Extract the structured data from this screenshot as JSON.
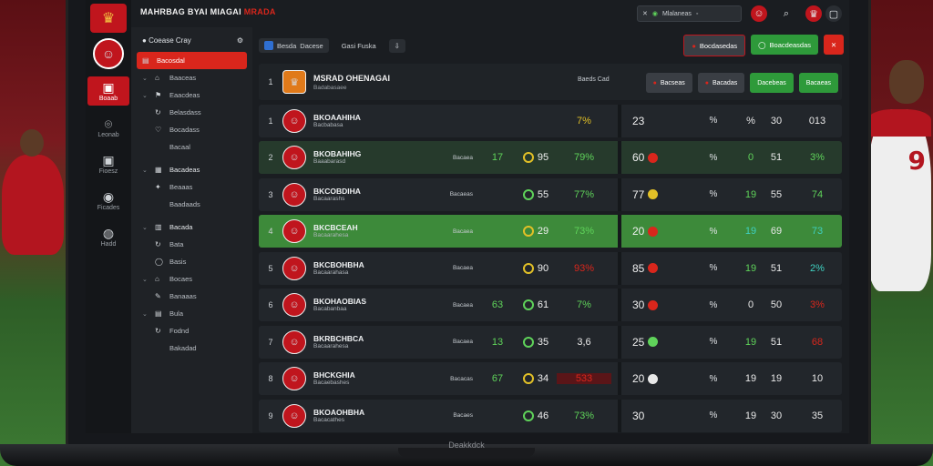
{
  "app": {
    "title_main": "MAHRBAG BYAI MIAGAI",
    "title_accent": "MRADA",
    "base_label": "Deakkdck"
  },
  "topbar": {
    "search_value": "Mlalaneas"
  },
  "rail": [
    {
      "label": "Leonab",
      "icon": "target-icon",
      "glyph": "⌾"
    },
    {
      "label": "Fioesz",
      "icon": "chart-icon",
      "glyph": "▣"
    },
    {
      "label": "Ficades",
      "icon": "camera-icon",
      "glyph": "◉"
    },
    {
      "label": "Hadd",
      "icon": "ball-icon",
      "glyph": "◍"
    }
  ],
  "sidebar": {
    "header": "Coease Cray",
    "items": [
      {
        "label": "Bacosdal",
        "type": "active",
        "icon": "▤"
      },
      {
        "label": "Baaceas",
        "type": "item",
        "icon": "⌂"
      },
      {
        "label": "Eaacdeas",
        "type": "item",
        "icon": "⚑"
      },
      {
        "label": "Belasdass",
        "type": "sub",
        "icon": "↻"
      },
      {
        "label": "Bocadass",
        "type": "sub",
        "icon": "♡"
      },
      {
        "label": "Bacaal",
        "type": "sub",
        "icon": ""
      },
      {
        "label": "Bacadeas",
        "type": "section",
        "icon": "▦"
      },
      {
        "label": "Beaaas",
        "type": "sub",
        "icon": "✦"
      },
      {
        "label": "Baadaads",
        "type": "sub",
        "icon": ""
      },
      {
        "label": "Bacada",
        "type": "section",
        "icon": "▥"
      },
      {
        "label": "Bata",
        "type": "sub",
        "icon": "↻"
      },
      {
        "label": "Basis",
        "type": "sub",
        "icon": "◯"
      },
      {
        "label": "Bocaes",
        "type": "item",
        "icon": "⌂"
      },
      {
        "label": "Banaaas",
        "type": "sub",
        "icon": "✎"
      },
      {
        "label": "Bula",
        "type": "item",
        "icon": "▤"
      },
      {
        "label": "Fodnd",
        "type": "sub",
        "icon": "↻"
      },
      {
        "label": "Bakadad",
        "type": "sub",
        "icon": ""
      }
    ]
  },
  "tabs": [
    {
      "label": "Besda",
      "extra": "Dacese",
      "active": true
    },
    {
      "label": "Gasi Fuska",
      "active": false
    }
  ],
  "actions": {
    "left_btn": "Bocdasedas",
    "green_btn": "Boacdeasdas"
  },
  "table_header": {
    "rank": "1",
    "title": "MSRAD OHENAGAI",
    "subtitle": "Badabasaee",
    "pos_label": "Baeds Cad",
    "btn1": "Bacseas",
    "btn2": "Bacadas",
    "btn3": "Dacebeas",
    "btn4": "Bacaeas"
  },
  "rows": [
    {
      "rank": "1",
      "name": "BKOAAHIHA",
      "sub": "Bacbabasa",
      "pos": "",
      "c1": "",
      "c2": "",
      "c3": "7%",
      "r1": "23",
      "r2": "%",
      "r3": "%",
      "r4": "30",
      "r5": "013",
      "style": "dark",
      "c3color": "#e2c027",
      "r3color": "#e8e8e8",
      "r5color": "#e8e8e8",
      "dot": "",
      "ring": ""
    },
    {
      "rank": "2",
      "name": "BKOBAHIHG",
      "sub": "Baaabarasd",
      "pos": "Bacaea",
      "c1": "17",
      "c2": "95",
      "c3": "79%",
      "r1": "60",
      "r2": "%",
      "r3": "0",
      "r4": "51",
      "r5": "3%",
      "style": "light",
      "c1color": "#5fd35a",
      "c3color": "#5fd35a",
      "r3color": "#5fd35a",
      "r5color": "#5fd35a",
      "dot": "#d9261c",
      "ring": "#e2c027"
    },
    {
      "rank": "3",
      "name": "BKCOBDIHA",
      "sub": "Bacaarashs",
      "pos": "Bacaeas",
      "c1": "",
      "c2": "55",
      "c3": "77%",
      "r1": "77",
      "r2": "%",
      "r3": "19",
      "r4": "55",
      "r5": "74",
      "style": "dark",
      "c1color": "#d9261c",
      "c3color": "#5fd35a",
      "r3color": "#5fd35a",
      "r5color": "#5fd35a",
      "dot": "#e2c027",
      "ring": "#5fd35a"
    },
    {
      "rank": "4",
      "name": "BKCBCEAH",
      "sub": "Bacaarahesa",
      "pos": "Bacaea",
      "c1": "",
      "c2": "29",
      "c3": "73%",
      "r1": "20",
      "r2": "%",
      "r3": "19",
      "r4": "69",
      "r5": "73",
      "style": "hl",
      "c1color": "#5fd35a",
      "c3color": "#5fd35a",
      "r3color": "#3fd0c0",
      "r5color": "#3fd0c0",
      "dot": "#d9261c",
      "ring": "#e2c027"
    },
    {
      "rank": "5",
      "name": "BKCBOHBHA",
      "sub": "Bacaarahasa",
      "pos": "Bacaea",
      "c1": "",
      "c2": "90",
      "c3": "93%",
      "r1": "85",
      "r2": "%",
      "r3": "19",
      "r4": "51",
      "r5": "2%",
      "style": "dark",
      "c1color": "#5fd35a",
      "c3color": "#d9261c",
      "r3color": "#5fd35a",
      "r5color": "#3fd0c0",
      "dot": "#d9261c",
      "ring": "#e2c027"
    },
    {
      "rank": "6",
      "name": "BKOHAOBIAS",
      "sub": "Bacabanbaa",
      "pos": "Bacaea",
      "c1": "63",
      "c2": "61",
      "c3": "7%",
      "r1": "30",
      "r2": "%",
      "r3": "0",
      "r4": "50",
      "r5": "3%",
      "style": "dark",
      "c1color": "#5fd35a",
      "c3color": "#5fd35a",
      "r3color": "#e8e8e8",
      "r5color": "#d9261c",
      "dot": "#d9261c",
      "ring": "#5fd35a"
    },
    {
      "rank": "7",
      "name": "BKRBCHBCA",
      "sub": "Bacaarahesa",
      "pos": "Bacaea",
      "c1": "13",
      "c2": "35",
      "c3": "3,6",
      "r1": "25",
      "r2": "%",
      "r3": "19",
      "r4": "51",
      "r5": "68",
      "style": "dark",
      "c1color": "#5fd35a",
      "c3color": "#e8e8e8",
      "r3color": "#5fd35a",
      "r5color": "#d9261c",
      "dot": "#5fd35a",
      "ring": "#5fd35a"
    },
    {
      "rank": "8",
      "name": "BHCKGHIA",
      "sub": "Bacaebashes",
      "pos": "Bacacas",
      "c1": "67",
      "c2": "34",
      "c3": "533",
      "r1": "20",
      "r2": "%",
      "r3": "19",
      "r4": "19",
      "r5": "10",
      "style": "dark",
      "c1color": "#5fd35a",
      "c3color": "#d9261c",
      "r3color": "#e8e8e8",
      "r5color": "#e8e8e8",
      "dot": "#e8e8e8",
      "ring": "#e2c027",
      "redcell": true
    },
    {
      "rank": "9",
      "name": "BKOAOHBHA",
      "sub": "Bacacathes",
      "pos": "Bacaes",
      "c1": "",
      "c2": "46",
      "c3": "73%",
      "r1": "30",
      "r2": "%",
      "r3": "19",
      "r4": "30",
      "r5": "35",
      "style": "dark",
      "c1color": "#5fd35a",
      "c3color": "#5fd35a",
      "r3color": "#e8e8e8",
      "r5color": "#e8e8e8",
      "dot": "",
      "ring": "#5fd35a"
    }
  ],
  "colors": {
    "brand_red": "#c0151d",
    "accent_green": "#2e9a3a",
    "highlight_row": "#3d8a3a"
  }
}
